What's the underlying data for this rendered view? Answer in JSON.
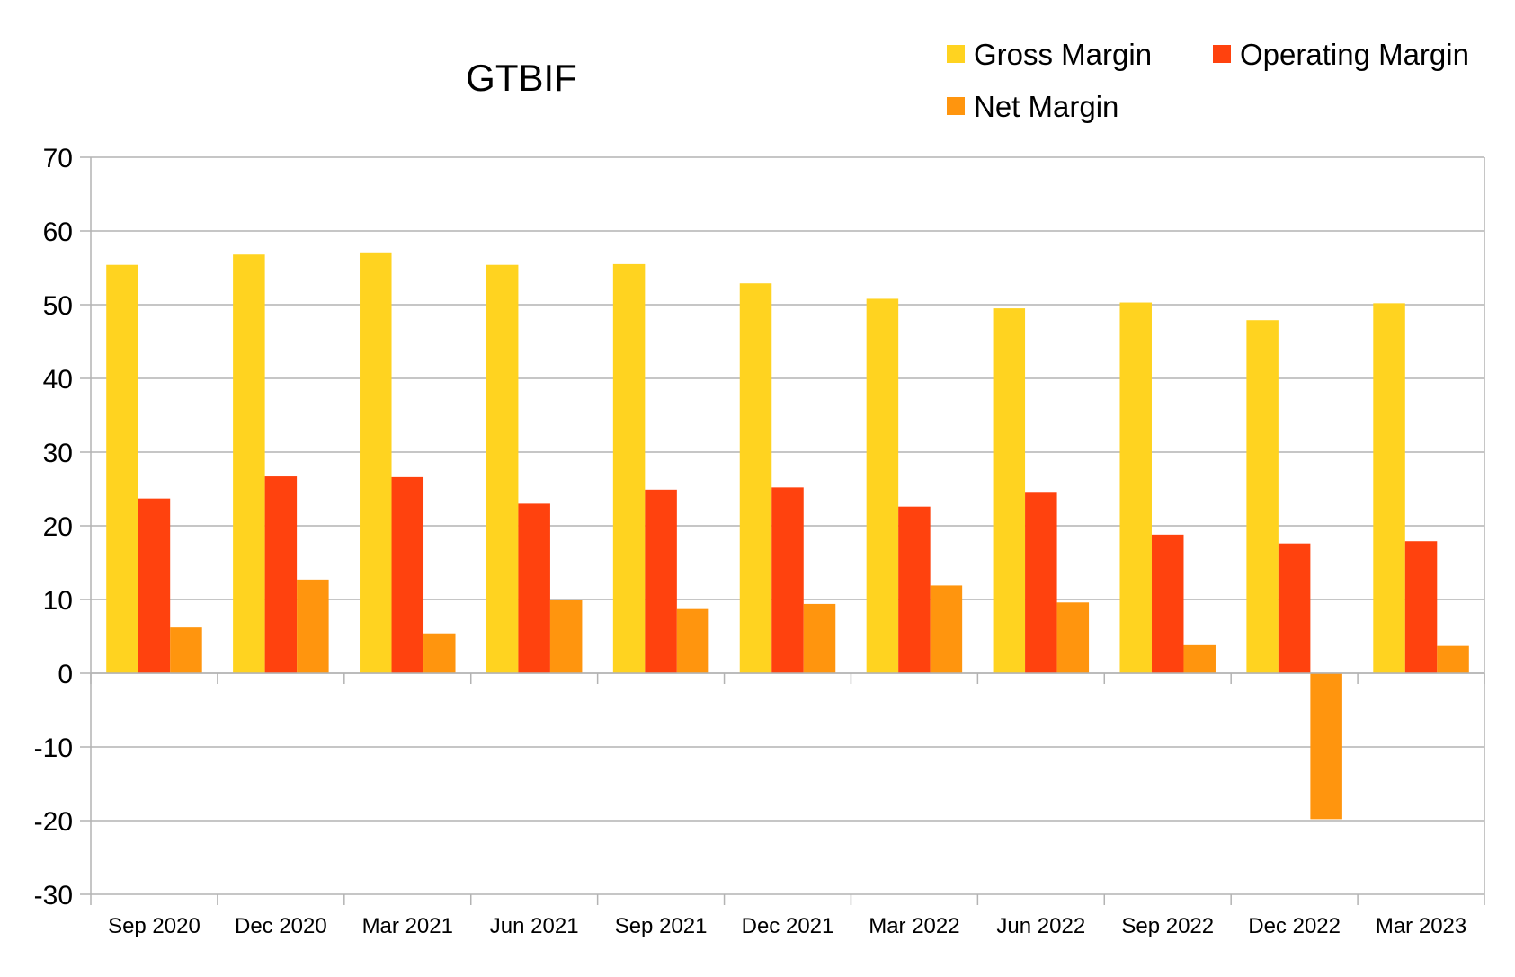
{
  "chart_data": {
    "type": "bar",
    "title": "GTBIF",
    "xlabel": "",
    "ylabel": "",
    "ylim": [
      -30,
      70
    ],
    "yticks": [
      70,
      60,
      50,
      40,
      30,
      20,
      10,
      0,
      -10,
      -20,
      -30
    ],
    "grid": true,
    "legend_position": "top-right",
    "categories": [
      "Sep 2020",
      "Dec 2020",
      "Mar 2021",
      "Jun 2021",
      "Sep 2021",
      "Dec 2021",
      "Mar 2022",
      "Jun 2022",
      "Sep 2022",
      "Dec 2022",
      "Mar 2023"
    ],
    "series": [
      {
        "name": "Gross Margin",
        "color": "#FFD320",
        "values": [
          55.4,
          56.8,
          57.1,
          55.4,
          55.5,
          52.9,
          50.8,
          49.5,
          50.3,
          47.9,
          50.2
        ]
      },
      {
        "name": "Operating Margin",
        "color": "#FF420E",
        "values": [
          23.7,
          26.7,
          26.6,
          23.0,
          24.9,
          25.2,
          22.6,
          24.6,
          18.8,
          17.6,
          17.9
        ]
      },
      {
        "name": "Net Margin",
        "color": "#FF950E",
        "values": [
          6.2,
          12.7,
          5.4,
          10.0,
          8.7,
          9.4,
          11.9,
          9.6,
          3.8,
          -19.8,
          3.7
        ]
      }
    ]
  }
}
